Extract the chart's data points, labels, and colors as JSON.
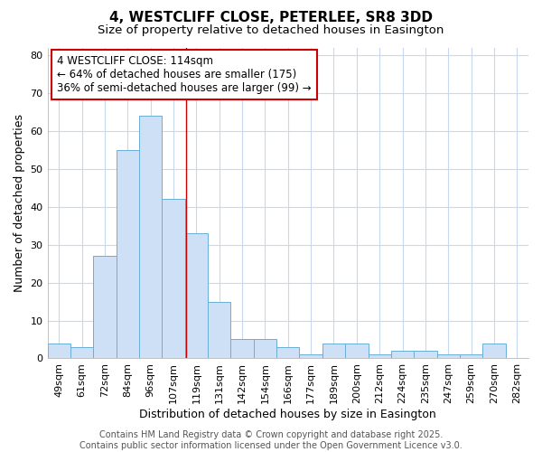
{
  "title1": "4, WESTCLIFF CLOSE, PETERLEE, SR8 3DD",
  "title2": "Size of property relative to detached houses in Easington",
  "xlabel": "Distribution of detached houses by size in Easington",
  "ylabel": "Number of detached properties",
  "bin_labels": [
    "49sqm",
    "61sqm",
    "72sqm",
    "84sqm",
    "96sqm",
    "107sqm",
    "119sqm",
    "131sqm",
    "142sqm",
    "154sqm",
    "166sqm",
    "177sqm",
    "189sqm",
    "200sqm",
    "212sqm",
    "224sqm",
    "235sqm",
    "247sqm",
    "259sqm",
    "270sqm",
    "282sqm"
  ],
  "values": [
    4,
    3,
    27,
    55,
    64,
    42,
    33,
    15,
    5,
    5,
    3,
    1,
    4,
    4,
    1,
    2,
    2,
    1,
    1,
    4,
    0
  ],
  "bar_color": "#cde0f5",
  "bar_edge_color": "#6aaed6",
  "red_line_x": 5.54,
  "annotation_line1": "4 WESTCLIFF CLOSE: 114sqm",
  "annotation_line2": "← 64% of detached houses are smaller (175)",
  "annotation_line3": "36% of semi-detached houses are larger (99) →",
  "annotation_box_color": "#ffffff",
  "annotation_box_edge": "#cc0000",
  "ylim": [
    0,
    82
  ],
  "yticks": [
    0,
    10,
    20,
    30,
    40,
    50,
    60,
    70,
    80
  ],
  "footer_text": "Contains HM Land Registry data © Crown copyright and database right 2025.\nContains public sector information licensed under the Open Government Licence v3.0.",
  "background_color": "#ffffff",
  "plot_bg_color": "#ffffff",
  "grid_color": "#c8d8ee",
  "title_fontsize": 11,
  "subtitle_fontsize": 9.5,
  "axis_label_fontsize": 9,
  "tick_fontsize": 8,
  "footer_fontsize": 7,
  "annotation_fontsize": 8.5
}
